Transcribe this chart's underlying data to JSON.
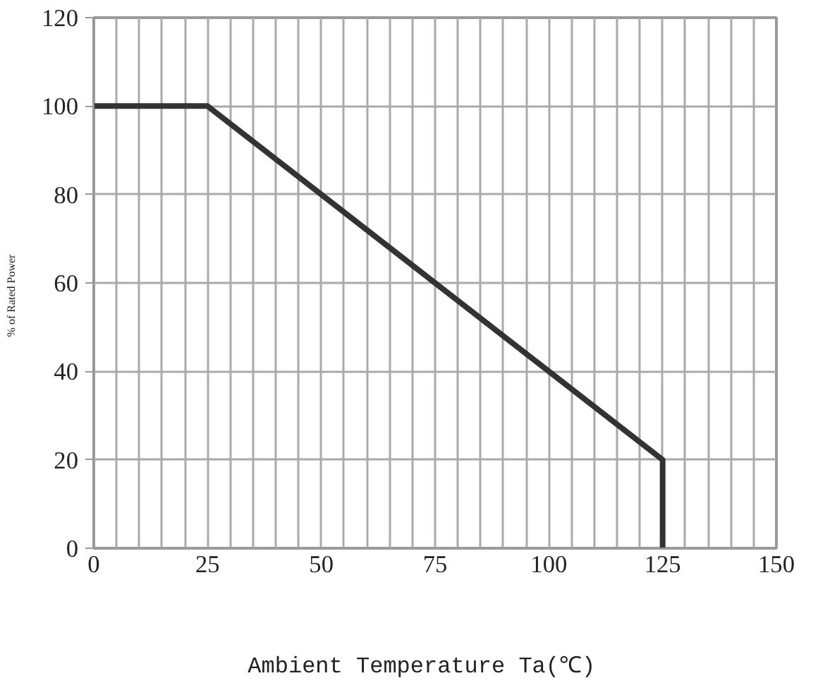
{
  "chart_data": {
    "type": "line",
    "xlabel": "Ambient  Temperature  Ta(℃)",
    "ylabel": "%    of    Rated    Power",
    "x": [
      0,
      25,
      125,
      125
    ],
    "series": [
      {
        "color": "#333333",
        "values": [
          100,
          100,
          20,
          0
        ]
      }
    ],
    "xlim": [
      0,
      150
    ],
    "ylim": [
      0,
      120
    ],
    "xticks": [
      0,
      {
        "value": 5,
        "label": null
      },
      {
        "value": 10,
        "label": null
      },
      {
        "value": 15,
        "label": null
      },
      {
        "value": 20,
        "label": null
      },
      25,
      {
        "value": 30,
        "label": null
      },
      {
        "value": 35,
        "label": null
      },
      {
        "value": 40,
        "label": null
      },
      {
        "value": 45,
        "label": null
      },
      50,
      {
        "value": 55,
        "label": null
      },
      {
        "value": 60,
        "label": null
      },
      {
        "value": 65,
        "label": null
      },
      {
        "value": 70,
        "label": null
      },
      75,
      {
        "value": 80,
        "label": null
      },
      {
        "value": 85,
        "label": null
      },
      {
        "value": 90,
        "label": null
      },
      {
        "value": 95,
        "label": null
      },
      100,
      {
        "value": 105,
        "label": null
      },
      {
        "value": 110,
        "label": null
      },
      {
        "value": 115,
        "label": null
      },
      {
        "value": 120,
        "label": null
      },
      125,
      {
        "value": 130,
        "label": null
      },
      {
        "value": 135,
        "label": null
      },
      {
        "value": 140,
        "label": null
      },
      {
        "value": 145,
        "label": null
      },
      150
    ],
    "yticks": [
      0,
      20,
      40,
      60,
      80,
      100,
      120
    ],
    "grid": true,
    "marker": "none",
    "line_style": "solid"
  }
}
